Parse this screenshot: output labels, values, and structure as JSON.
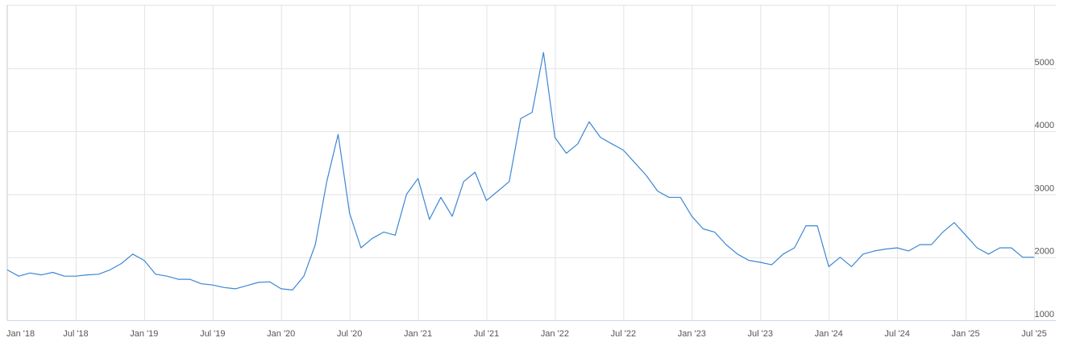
{
  "chart_data": {
    "type": "line",
    "x": [
      "2018-01",
      "2018-02",
      "2018-03",
      "2018-04",
      "2018-05",
      "2018-06",
      "2018-07",
      "2018-08",
      "2018-09",
      "2018-10",
      "2018-11",
      "2018-12",
      "2019-01",
      "2019-02",
      "2019-03",
      "2019-04",
      "2019-05",
      "2019-06",
      "2019-07",
      "2019-08",
      "2019-09",
      "2019-10",
      "2019-11",
      "2019-12",
      "2020-01",
      "2020-02",
      "2020-03",
      "2020-04",
      "2020-05",
      "2020-06",
      "2020-07",
      "2020-08",
      "2020-09",
      "2020-10",
      "2020-11",
      "2020-12",
      "2021-01",
      "2021-02",
      "2021-03",
      "2021-04",
      "2021-05",
      "2021-06",
      "2021-07",
      "2021-08",
      "2021-09",
      "2021-10",
      "2021-11",
      "2021-12",
      "2022-01",
      "2022-02",
      "2022-03",
      "2022-04",
      "2022-05",
      "2022-06",
      "2022-07",
      "2022-08",
      "2022-09",
      "2022-10",
      "2022-11",
      "2022-12",
      "2023-01",
      "2023-02",
      "2023-03",
      "2023-04",
      "2023-05",
      "2023-06",
      "2023-07",
      "2023-08",
      "2023-09",
      "2023-10",
      "2023-11",
      "2023-12",
      "2024-01",
      "2024-02",
      "2024-03",
      "2024-04",
      "2024-05",
      "2024-06",
      "2024-07",
      "2024-08",
      "2024-09",
      "2024-10",
      "2024-11",
      "2024-12",
      "2025-01",
      "2025-02",
      "2025-03",
      "2025-04",
      "2025-05",
      "2025-06",
      "2025-07"
    ],
    "series": [
      {
        "color": "#3c87d4",
        "values": [
          1800,
          1700,
          1750,
          1720,
          1760,
          1700,
          1700,
          1720,
          1730,
          1800,
          1900,
          2050,
          1950,
          1730,
          1700,
          1650,
          1650,
          1580,
          1560,
          1520,
          1500,
          1550,
          1600,
          1610,
          1500,
          1480,
          1700,
          2200,
          3200,
          3950,
          2700,
          2150,
          2300,
          2400,
          2350,
          3000,
          3250,
          2600,
          2950,
          2650,
          3200,
          3350,
          2900,
          3050,
          3200,
          4200,
          4300,
          5250,
          3900,
          3650,
          3800,
          4150,
          3900,
          3800,
          3700,
          3500,
          3300,
          3050,
          2950,
          2950,
          2650,
          2450,
          2400,
          2200,
          2050,
          1950,
          1920,
          1880,
          2050,
          2150,
          2500,
          2500,
          1850,
          2000,
          1850,
          2050,
          2100,
          2130,
          2150,
          2100,
          2200,
          2200,
          2400,
          2550,
          2350,
          2150,
          2050,
          2150,
          2150,
          2000,
          2000
        ]
      }
    ],
    "xlim": [
      "2018-01",
      "2025-07"
    ],
    "xticks": [
      {
        "value": "2018-01",
        "label": "Jan '18"
      },
      {
        "value": "2018-07",
        "label": "Jul '18"
      },
      {
        "value": "2019-01",
        "label": "Jan '19"
      },
      {
        "value": "2019-07",
        "label": "Jul '19"
      },
      {
        "value": "2020-01",
        "label": "Jan '20"
      },
      {
        "value": "2020-07",
        "label": "Jul '20"
      },
      {
        "value": "2021-01",
        "label": "Jan '21"
      },
      {
        "value": "2021-07",
        "label": "Jul '21"
      },
      {
        "value": "2022-01",
        "label": "Jan '22"
      },
      {
        "value": "2022-07",
        "label": "Jul '22"
      },
      {
        "value": "2023-01",
        "label": "Jan '23"
      },
      {
        "value": "2023-07",
        "label": "Jul '23"
      },
      {
        "value": "2024-01",
        "label": "Jan '24"
      },
      {
        "value": "2024-07",
        "label": "Jul '24"
      },
      {
        "value": "2025-01",
        "label": "Jan '25"
      },
      {
        "value": "2025-07",
        "label": "Jul '25"
      }
    ],
    "ylim": [
      1000,
      6000
    ],
    "yticks": [
      1000,
      2000,
      3000,
      4000,
      5000
    ],
    "grid": true
  }
}
